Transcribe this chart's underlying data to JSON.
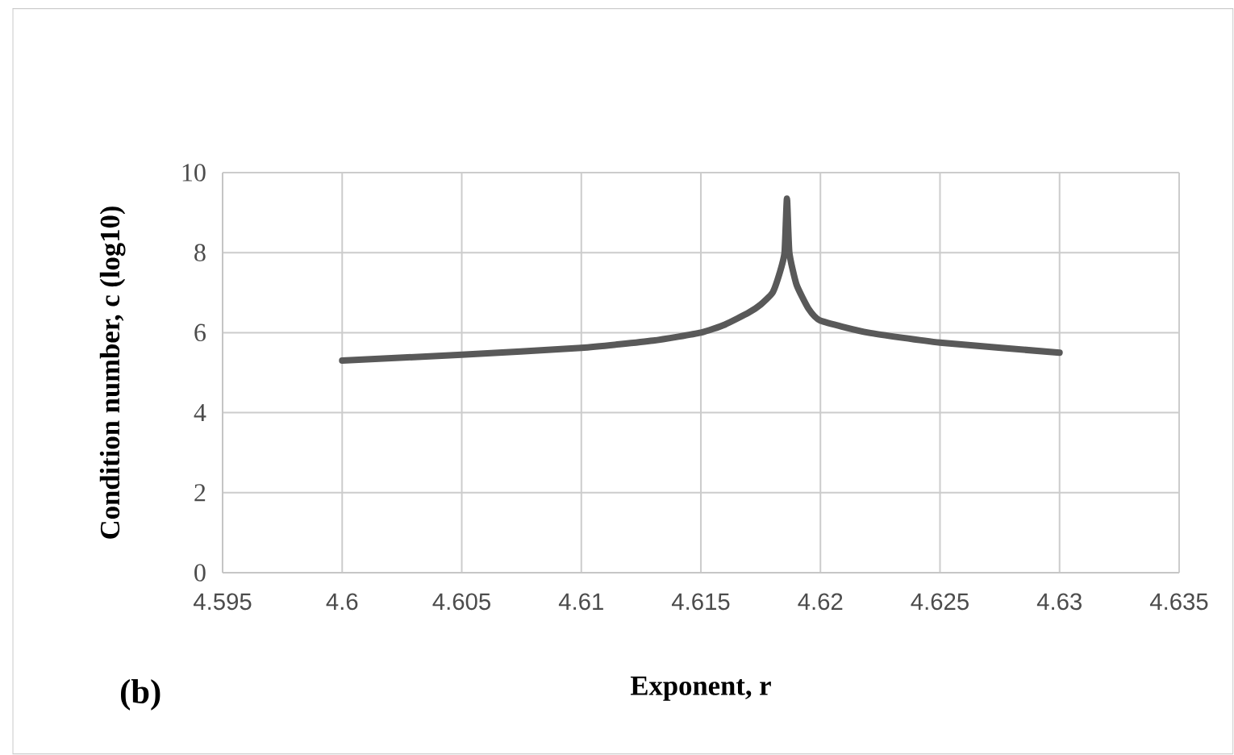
{
  "chart_data": {
    "type": "line",
    "xlabel": "Exponent, r",
    "ylabel": "Condition number, c (log10)",
    "annotations": [
      "(b)"
    ],
    "x": [
      4.6,
      4.605,
      4.61,
      4.613,
      4.615,
      4.616,
      4.617,
      4.6175,
      4.618,
      4.6183,
      4.6185,
      4.6186,
      4.6187,
      4.619,
      4.6195,
      4.62,
      4.622,
      4.625,
      4.63
    ],
    "series": [
      {
        "color": "#595959",
        "values": [
          5.3,
          5.45,
          5.62,
          5.8,
          6.0,
          6.2,
          6.5,
          6.7,
          7.0,
          7.5,
          8.0,
          9.35,
          8.0,
          7.2,
          6.6,
          6.3,
          6.0,
          5.75,
          5.5
        ]
      }
    ],
    "xlim": [
      4.595,
      4.635
    ],
    "ylim": [
      0,
      10
    ],
    "xticks": [
      4.595,
      4.6,
      4.605,
      4.61,
      4.615,
      4.62,
      4.625,
      4.63,
      4.635
    ],
    "yticks": [
      0,
      2,
      4,
      6,
      8,
      10
    ],
    "grid": true,
    "marker": "none",
    "line_style": "solid"
  }
}
